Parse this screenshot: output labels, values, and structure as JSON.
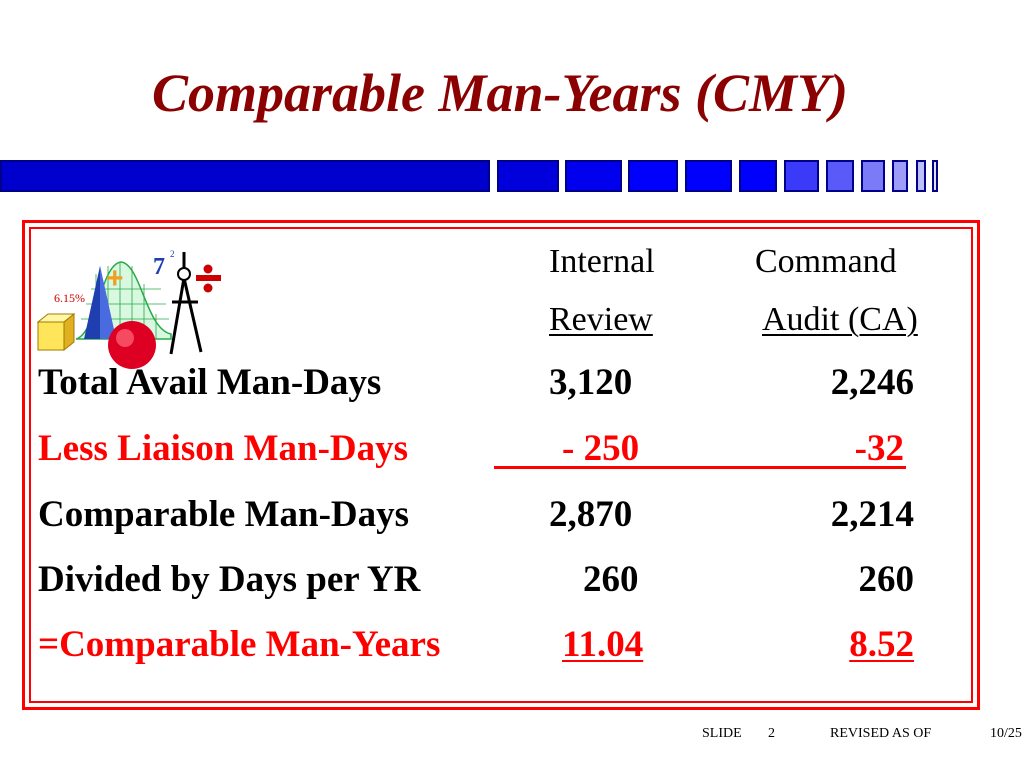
{
  "slide": {
    "title": "Comparable Man-Years (CMY)",
    "colors": {
      "title": "#8b0000",
      "accent_blue": "#0000ff",
      "frame": "#ff0000",
      "highlight": "#ff0000"
    },
    "icon": {
      "name": "math-clipart-icon",
      "labels": {
        "percent": "6.15%",
        "number": "7",
        "exponent": "2"
      }
    },
    "table": {
      "columns": [
        {
          "line1": "Internal",
          "line2": "Review"
        },
        {
          "line1": "Command",
          "line2": "Audit (CA)"
        }
      ],
      "rows": [
        {
          "label": "Total Avail Man-Days",
          "internal": "3,120",
          "command": "2,246"
        },
        {
          "label": "Less Liaison Man-Days",
          "internal": "- 250",
          "command": "-32"
        },
        {
          "label": "Comparable Man-Days",
          "internal": "2,870",
          "command": "2,214"
        },
        {
          "label": "Divided by Days per YR",
          "internal": "260",
          "command": "260"
        },
        {
          "label": "=Comparable Man-Years",
          "internal": "11.04",
          "command": "8.52"
        }
      ]
    },
    "footer": {
      "slide_label": "SLIDE",
      "slide_number": "2",
      "revised_label": "REVISED AS OF",
      "revised_date": "10/25"
    }
  }
}
